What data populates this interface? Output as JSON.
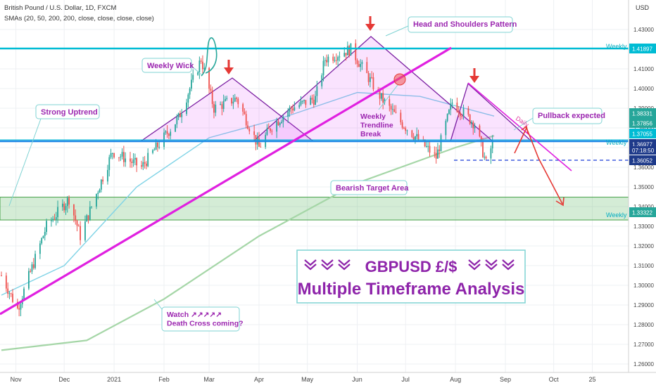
{
  "header": {
    "symbol_line": "British Pound / U.S. Dollar, 1D, FXCM",
    "sma_line": "SMAs (20, 50, 200, 200, close, close, close, close)",
    "currency": "USD"
  },
  "colors": {
    "up_candle": "#26a69a",
    "down_candle": "#ef5350",
    "cyan_line": "#00bcd4",
    "magenta": "#e020e0",
    "purple": "#8e24aa",
    "green_zone": "#66bb6a",
    "sma50": "#7fd3e6",
    "sma200": "#a5d6a7",
    "red_arrow": "#e53935",
    "annotation_text": "#9c27b0"
  },
  "icons": {
    "marker": "red-down-arrow-icon",
    "title_chevrons": "double-chevron-down-icon"
  },
  "chart_data": {
    "type": "candlestick",
    "title": "GBPUSD £/$",
    "subtitle": "Multiple Timeframe Analysis",
    "x_tick_labels": [
      "Nov",
      "Dec",
      "2021",
      "Feb",
      "Mar",
      "Apr",
      "May",
      "Jun",
      "Jul",
      "Aug",
      "Sep",
      "Oct",
      "25"
    ],
    "y_tick_labels": [
      "1.43000",
      "1.42000",
      "1.41000",
      "1.40000",
      "1.39000",
      "1.38000",
      "1.37000",
      "1.36000",
      "1.35000",
      "1.34000",
      "1.33000",
      "1.32000",
      "1.31000",
      "1.30000",
      "1.29000",
      "1.28000",
      "1.27000",
      "1.26000"
    ],
    "ylim": [
      1.255,
      1.44
    ],
    "grid": true,
    "price_labels": [
      {
        "value": 1.41897,
        "text": "1.41897",
        "color": "#00bcd4"
      },
      {
        "value": 1.38331,
        "text": "1.38331",
        "color": "#26a69a"
      },
      {
        "value": 1.37856,
        "text": "1.37856",
        "color": "#26a69a"
      },
      {
        "value": 1.37055,
        "text": "1.37055",
        "color": "#00bcd4"
      },
      {
        "value": 1.36977,
        "text": "1.36977",
        "color": "#1e3a8a"
      },
      {
        "value": 1.36052,
        "text": "1.36052",
        "color": "#1e3a8a"
      },
      {
        "value": 1.33322,
        "text": "1.33322",
        "color": "#26a69a"
      }
    ],
    "countdown": "07:18:50",
    "levels": [
      {
        "name": "Weekly",
        "value": 1.41897
      },
      {
        "name": "Weekly",
        "value": 1.37
      },
      {
        "name": "Weekly",
        "value": 1.33322
      }
    ],
    "target_zone": [
      1.3332,
      1.3448
    ],
    "annotations": [
      "Weekly Wick",
      "Strong Uptrend",
      "Head and Shoulders Pattern",
      "Weekly Trendline Break",
      "Pullback expected",
      "Daily",
      "Bearish Target Area",
      "Watch ↗↗↗↗↗ Death Cross coming?"
    ],
    "series": [
      {
        "name": "Price",
        "key_points": [
          {
            "date": "2020-10-23",
            "value": 1.305
          },
          {
            "date": "2020-11-02",
            "value": 1.288
          },
          {
            "date": "2020-11-20",
            "value": 1.33
          },
          {
            "date": "2020-12-04",
            "value": 1.344
          },
          {
            "date": "2020-12-11",
            "value": 1.325
          },
          {
            "date": "2020-12-31",
            "value": 1.368
          },
          {
            "date": "2021-01-18",
            "value": 1.36
          },
          {
            "date": "2021-02-10",
            "value": 1.385
          },
          {
            "date": "2021-02-24",
            "value": 1.415
          },
          {
            "date": "2021-03-04",
            "value": 1.39
          },
          {
            "date": "2021-03-18",
            "value": 1.395
          },
          {
            "date": "2021-04-01",
            "value": 1.37
          },
          {
            "date": "2021-04-08",
            "value": 1.38
          },
          {
            "date": "2021-04-21",
            "value": 1.39
          },
          {
            "date": "2021-05-06",
            "value": 1.395
          },
          {
            "date": "2021-05-12",
            "value": 1.415
          },
          {
            "date": "2021-05-28",
            "value": 1.42
          },
          {
            "date": "2021-06-16",
            "value": 1.395
          },
          {
            "date": "2021-06-28",
            "value": 1.383
          },
          {
            "date": "2021-07-20",
            "value": 1.365
          },
          {
            "date": "2021-07-30",
            "value": 1.393
          },
          {
            "date": "2021-08-13",
            "value": 1.382
          },
          {
            "date": "2021-08-20",
            "value": 1.362
          },
          {
            "date": "2021-08-24",
            "value": 1.372
          }
        ]
      },
      {
        "name": "SMA 50",
        "key_points": [
          {
            "date": "2020-10-23",
            "value": 1.295
          },
          {
            "date": "2020-12-01",
            "value": 1.31
          },
          {
            "date": "2021-01-15",
            "value": 1.35
          },
          {
            "date": "2021-03-01",
            "value": 1.375
          },
          {
            "date": "2021-04-15",
            "value": 1.385
          },
          {
            "date": "2021-06-01",
            "value": 1.398
          },
          {
            "date": "2021-07-10",
            "value": 1.396
          },
          {
            "date": "2021-08-25",
            "value": 1.386
          }
        ]
      },
      {
        "name": "SMA 200",
        "key_points": [
          {
            "date": "2020-10-23",
            "value": 1.267
          },
          {
            "date": "2020-12-15",
            "value": 1.272
          },
          {
            "date": "2021-02-01",
            "value": 1.293
          },
          {
            "date": "2021-04-01",
            "value": 1.325
          },
          {
            "date": "2021-06-01",
            "value": 1.352
          },
          {
            "date": "2021-08-01",
            "value": 1.37
          },
          {
            "date": "2021-08-25",
            "value": 1.376
          }
        ]
      }
    ]
  }
}
